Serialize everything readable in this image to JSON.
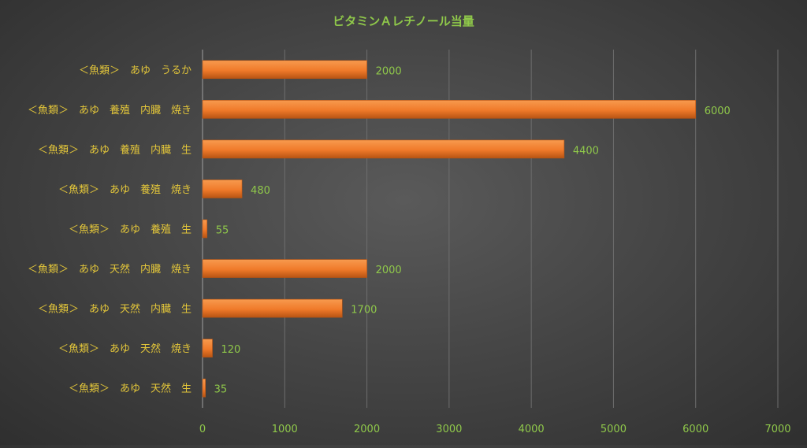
{
  "chart_data": {
    "type": "bar",
    "orientation": "horizontal",
    "title": "ビタミンＡレチノール当量",
    "categories": [
      "＜魚類＞　あゆ　うるか",
      "＜魚類＞　あゆ　養殖　内臓　焼き",
      "＜魚類＞　あゆ　養殖　内臓　生",
      "＜魚類＞　あゆ　養殖　焼き",
      "＜魚類＞　あゆ　養殖　生",
      "＜魚類＞　あゆ　天然　内臓　焼き",
      "＜魚類＞　あゆ　天然　内臓　生",
      "＜魚類＞　あゆ　天然　焼き",
      "＜魚類＞　あゆ　天然　生"
    ],
    "values": [
      2000,
      6000,
      4400,
      480,
      55,
      2000,
      1700,
      120,
      35
    ],
    "data_labels": [
      "2000",
      "6000",
      "4400",
      "480",
      "55",
      "2000",
      "1700",
      "120",
      "35"
    ],
    "xlim": [
      0,
      7000
    ],
    "xticks": [
      0,
      1000,
      2000,
      3000,
      4000,
      5000,
      6000,
      7000
    ],
    "xtick_labels": [
      "0",
      "1000",
      "2000",
      "3000",
      "4000",
      "5000",
      "6000",
      "7000"
    ],
    "grid": true,
    "legend": "none",
    "colors": {
      "bar": "#f07a2a",
      "bar_highlight": "#f79a4e",
      "bar_border": "#b85413",
      "category_label": "#e3c63a",
      "value_label": "#8fc84a",
      "axis_tick": "#8fc84a",
      "title": "#8fc84a",
      "gridline": "#6e6e6e",
      "axis_line": "#a0a0a0"
    }
  }
}
